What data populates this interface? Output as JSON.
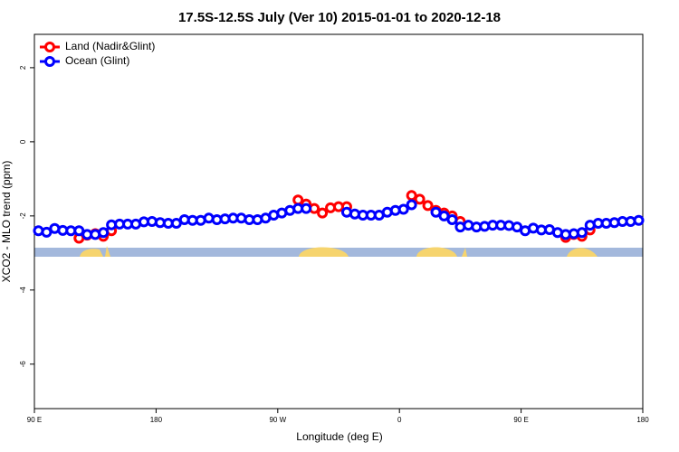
{
  "chart_data": {
    "type": "line",
    "title": "17.5S-12.5S July (Ver 10)   2015-01-01 to 2020-12-18",
    "x_label": "Longitude (deg E)",
    "y_label": "XCO2 - MLO trend (ppm)",
    "xlim": [
      90,
      540
    ],
    "xticks": [
      {
        "value": 90,
        "label": "90 E"
      },
      180,
      {
        "value": 270,
        "label": "90 W"
      },
      {
        "value": 360,
        "label": "0"
      },
      {
        "value": 450,
        "label": "90 E"
      },
      {
        "value": 540,
        "label": "180"
      }
    ],
    "ylim": [
      -7.2,
      2.9
    ],
    "yticks": [
      -6,
      -4,
      -2,
      0,
      2
    ],
    "legend": "top-left",
    "x": [
      93,
      99,
      105,
      111,
      117,
      123,
      129,
      135,
      141,
      147,
      153,
      159,
      165,
      171,
      177,
      183,
      189,
      195,
      201,
      207,
      213,
      219,
      225,
      231,
      237,
      243,
      249,
      255,
      261,
      267,
      273,
      279,
      285,
      291,
      297,
      303,
      309,
      315,
      321,
      327,
      333,
      339,
      345,
      351,
      357,
      363,
      369,
      375,
      381,
      387,
      393,
      399,
      405,
      411,
      417,
      423,
      429,
      435,
      441,
      447,
      453,
      459,
      465,
      471,
      477,
      483,
      489,
      495,
      501,
      507,
      513,
      519,
      525,
      531,
      537
    ],
    "series": [
      {
        "name": "Land (Nadir&Glint)",
        "color": "#ff0000",
        "values": [
          null,
          null,
          null,
          null,
          null,
          -2.6,
          -2.52,
          -2.48,
          -2.55,
          -2.4,
          null,
          null,
          null,
          null,
          null,
          null,
          null,
          null,
          null,
          null,
          null,
          null,
          null,
          null,
          null,
          null,
          null,
          null,
          null,
          null,
          null,
          null,
          -1.57,
          -1.68,
          -1.8,
          -1.92,
          -1.78,
          -1.75,
          -1.75,
          null,
          null,
          null,
          null,
          null,
          null,
          null,
          -1.45,
          -1.55,
          -1.72,
          -1.85,
          -1.92,
          -2.0,
          -2.15,
          null,
          null,
          null,
          null,
          null,
          null,
          null,
          null,
          null,
          null,
          null,
          null,
          -2.58,
          -2.5,
          -2.55,
          -2.38,
          null,
          null,
          null,
          null,
          null,
          null
        ]
      },
      {
        "name": "Ocean (Glint)",
        "color": "#0000ff",
        "values": [
          -2.4,
          -2.44,
          -2.34,
          -2.39,
          -2.4,
          -2.4,
          -2.5,
          -2.5,
          -2.45,
          -2.24,
          -2.22,
          -2.22,
          -2.22,
          -2.16,
          -2.15,
          -2.18,
          -2.2,
          -2.2,
          -2.1,
          -2.12,
          -2.12,
          -2.06,
          -2.1,
          -2.08,
          -2.06,
          -2.06,
          -2.1,
          -2.1,
          -2.06,
          -1.98,
          -1.92,
          -1.85,
          -1.8,
          -1.8,
          null,
          null,
          null,
          null,
          -1.9,
          -1.95,
          -1.98,
          -1.98,
          -1.98,
          -1.9,
          -1.85,
          -1.82,
          -1.7,
          null,
          null,
          -1.9,
          -2.0,
          -2.1,
          -2.3,
          -2.25,
          -2.3,
          -2.28,
          -2.25,
          -2.25,
          -2.26,
          -2.3,
          -2.4,
          -2.33,
          -2.38,
          -2.37,
          -2.45,
          -2.5,
          -2.48,
          -2.45,
          -2.25,
          -2.2,
          -2.2,
          -2.18,
          -2.15,
          -2.15,
          -2.12
        ]
      }
    ]
  }
}
